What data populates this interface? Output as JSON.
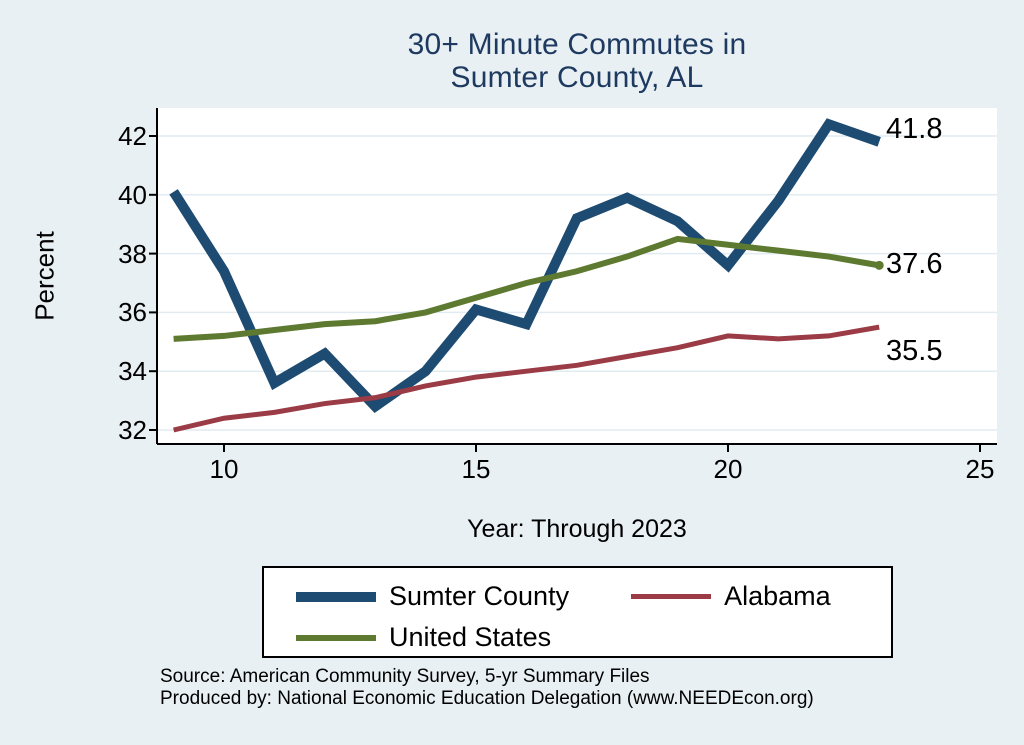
{
  "title": {
    "line1": "30+ Minute Commutes in",
    "line2": "Sumter County, AL"
  },
  "colors": {
    "background": "#e8f0f3",
    "plot_background": "#ffffff",
    "gridline": "#e1ebf2",
    "axis": "#000000",
    "title_text": "#1f3a60",
    "sumter_county": "#1e4b72",
    "alabama": "#9a3b45",
    "united_states": "#5d7a30"
  },
  "chart_data": {
    "type": "line",
    "title": "30+ Minute Commutes in Sumter County, AL",
    "xlabel": "Year: Through 2023",
    "ylabel": "Percent",
    "x": [
      2009,
      2010,
      2011,
      2012,
      2013,
      2014,
      2015,
      2016,
      2017,
      2018,
      2019,
      2020,
      2021,
      2022,
      2023
    ],
    "x_ticks": [
      2010,
      2015,
      2020,
      2025
    ],
    "x_tick_labels": [
      "10",
      "15",
      "20",
      "25"
    ],
    "y_ticks": [
      32,
      34,
      36,
      38,
      40,
      42
    ],
    "ylim": [
      31.5,
      43.0
    ],
    "xlim": [
      2008.7,
      2025.3
    ],
    "grid": "horizontal",
    "legend_position": "below",
    "series": [
      {
        "name": "Sumter County",
        "color": "#1e4b72",
        "stroke_width": 10,
        "values": [
          40.1,
          37.4,
          33.6,
          34.6,
          32.8,
          34.0,
          36.1,
          35.6,
          39.2,
          39.9,
          39.1,
          37.6,
          39.8,
          42.4,
          41.8
        ],
        "end_label": "41.8",
        "end_marker": false
      },
      {
        "name": "Alabama",
        "color": "#9a3b45",
        "stroke_width": 5,
        "values": [
          32.0,
          32.4,
          32.6,
          32.9,
          33.1,
          33.5,
          33.8,
          34.0,
          34.2,
          34.5,
          34.8,
          35.2,
          35.1,
          35.2,
          35.5
        ],
        "end_label": "35.5",
        "end_marker": false
      },
      {
        "name": "United States",
        "color": "#5d7a30",
        "stroke_width": 6,
        "values": [
          35.1,
          35.2,
          35.4,
          35.6,
          35.7,
          36.0,
          36.5,
          37.0,
          37.4,
          37.9,
          38.5,
          38.3,
          38.1,
          37.9,
          37.6
        ],
        "end_label": "37.6",
        "end_marker": true
      }
    ]
  },
  "legend": {
    "items": [
      "Sumter County",
      "Alabama",
      "United States"
    ]
  },
  "source": {
    "line1": "Source: American Community Survey, 5-yr Summary Files",
    "line2": "Produced by: National Economic Education Delegation (www.NEEDEcon.org)"
  }
}
